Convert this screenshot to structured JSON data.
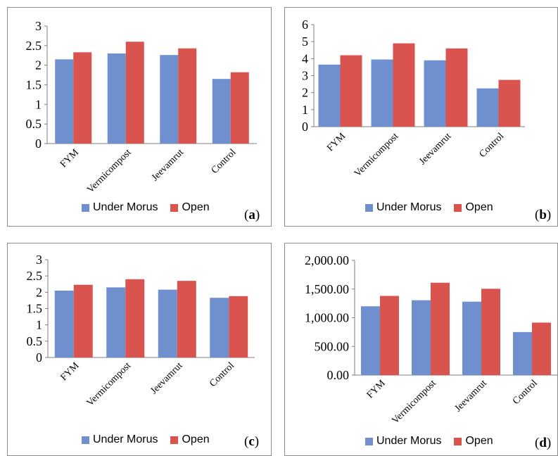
{
  "colors": {
    "under_morus": "#6f8fcf",
    "open": "#d9534f"
  },
  "legend": {
    "series1": "Under Morus",
    "series2": "Open"
  },
  "panels": [
    {
      "label_open": "(",
      "label_letter": "a",
      "label_close": ")"
    },
    {
      "label_open": "(",
      "label_letter": "b",
      "label_close": ")"
    },
    {
      "label_open": "(",
      "label_letter": "c",
      "label_close": ")"
    },
    {
      "label_open": "(",
      "label_letter": "d",
      "label_close": ")"
    }
  ],
  "chart_data": [
    {
      "type": "bar",
      "panel": "(a)",
      "categories": [
        "FYM",
        "Vermicompost",
        "Jeevamrut",
        "Control"
      ],
      "series": [
        {
          "name": "Under Morus",
          "values": [
            2.15,
            2.3,
            2.26,
            1.65
          ]
        },
        {
          "name": "Open",
          "values": [
            2.33,
            2.6,
            2.43,
            1.82
          ]
        }
      ],
      "ylim": [
        0,
        3
      ],
      "yticks": [
        "0",
        "0.5",
        "1",
        "1.5",
        "2",
        "2.5",
        "3"
      ],
      "ytick_values": [
        0,
        0.5,
        1,
        1.5,
        2,
        2.5,
        3
      ],
      "legend_position": "bottom"
    },
    {
      "type": "bar",
      "panel": "(b)",
      "categories": [
        "FYM",
        "Vermicompost",
        "Jeevamrut",
        "Control"
      ],
      "series": [
        {
          "name": "Under Morus",
          "values": [
            3.65,
            3.95,
            3.9,
            2.25
          ]
        },
        {
          "name": "Open",
          "values": [
            4.2,
            4.9,
            4.6,
            2.75
          ]
        }
      ],
      "ylim": [
        0,
        6
      ],
      "yticks": [
        "0",
        "1",
        "2",
        "3",
        "4",
        "5",
        "6"
      ],
      "ytick_values": [
        0,
        1,
        2,
        3,
        4,
        5,
        6
      ],
      "legend_position": "bottom"
    },
    {
      "type": "bar",
      "panel": "(c)",
      "categories": [
        "FYM",
        "Vermicompost",
        "Jeevamrut",
        "Control"
      ],
      "series": [
        {
          "name": "Under Morus",
          "values": [
            2.05,
            2.15,
            2.08,
            1.83
          ]
        },
        {
          "name": "Open",
          "values": [
            2.23,
            2.4,
            2.35,
            1.88
          ]
        }
      ],
      "ylim": [
        0,
        3
      ],
      "yticks": [
        "0",
        "0.5",
        "1",
        "1.5",
        "2",
        "2.5",
        "3"
      ],
      "ytick_values": [
        0,
        0.5,
        1,
        1.5,
        2,
        2.5,
        3
      ],
      "legend_position": "bottom"
    },
    {
      "type": "bar",
      "panel": "(d)",
      "categories": [
        "FYM",
        "Vermicompost",
        "Jeevamrut",
        "Control"
      ],
      "series": [
        {
          "name": "Under Morus",
          "values": [
            1200,
            1305,
            1280,
            750
          ]
        },
        {
          "name": "Open",
          "values": [
            1380,
            1610,
            1505,
            915
          ]
        }
      ],
      "ylim": [
        0,
        2000
      ],
      "yticks": [
        "0.00",
        "500.00",
        "1,000.00",
        "1,500.00",
        "2,000.00"
      ],
      "ytick_values": [
        0,
        500,
        1000,
        1500,
        2000
      ],
      "legend_position": "bottom"
    }
  ]
}
